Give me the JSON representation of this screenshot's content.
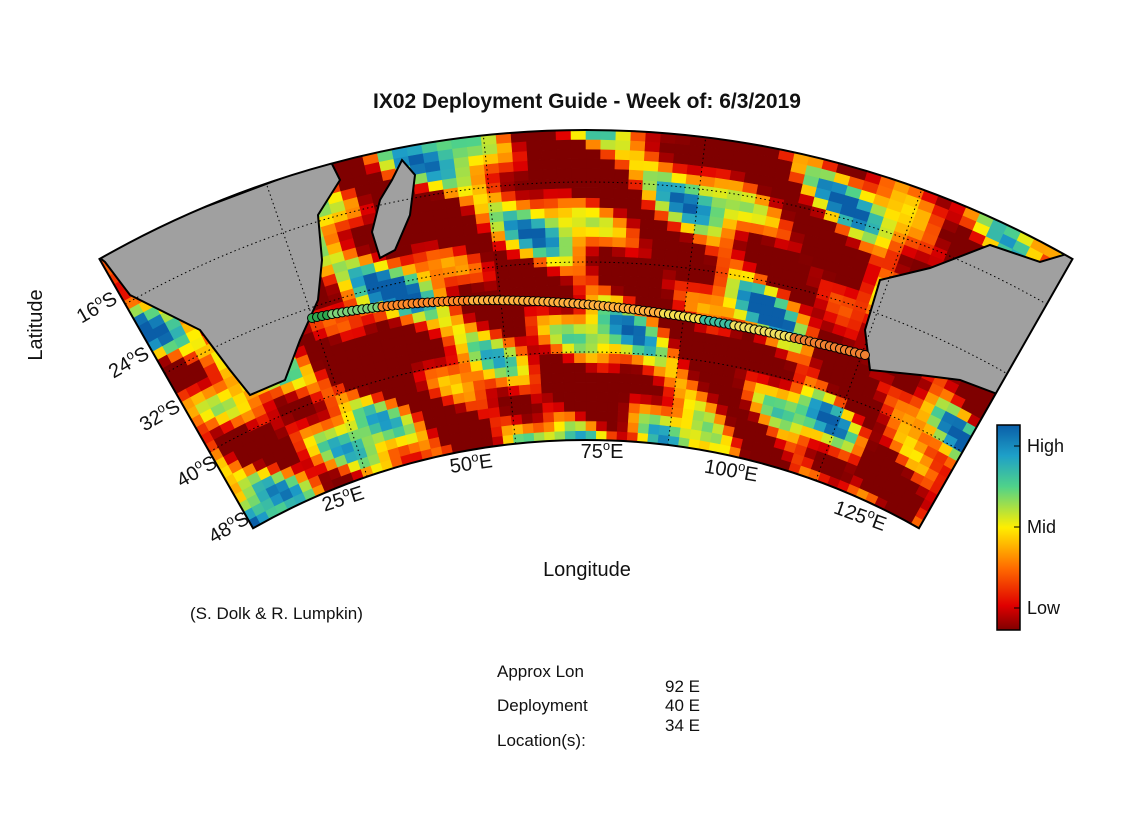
{
  "title": "IX02 Deployment Guide - Week of: 6/3/2019",
  "axis_labels": {
    "x": "Longitude",
    "y": "Latitude"
  },
  "lat_ticks": [
    {
      "number": "16",
      "degree": "o",
      "hemisphere": "S"
    },
    {
      "number": "24",
      "degree": "o",
      "hemisphere": "S"
    },
    {
      "number": "32",
      "degree": "o",
      "hemisphere": "S"
    },
    {
      "number": "40",
      "degree": "o",
      "hemisphere": "S"
    },
    {
      "number": "48",
      "degree": "o",
      "hemisphere": "S"
    }
  ],
  "lon_ticks": [
    {
      "number": "25",
      "degree": "o",
      "hemisphere": "E"
    },
    {
      "number": "50",
      "degree": "o",
      "hemisphere": "E"
    },
    {
      "number": "75",
      "degree": "o",
      "hemisphere": "E"
    },
    {
      "number": "100",
      "degree": "o",
      "hemisphere": "E"
    },
    {
      "number": "125",
      "degree": "o",
      "hemisphere": "E"
    }
  ],
  "colorbar": {
    "labels": [
      "High",
      "Mid",
      "Low"
    ]
  },
  "credit": "(S. Dolk & R. Lumpkin)",
  "deployment": {
    "label_lines": [
      "Approx Lon",
      "Deployment",
      "Location(s):"
    ],
    "locations": [
      "92 E",
      "40 E",
      "34 E"
    ]
  }
}
